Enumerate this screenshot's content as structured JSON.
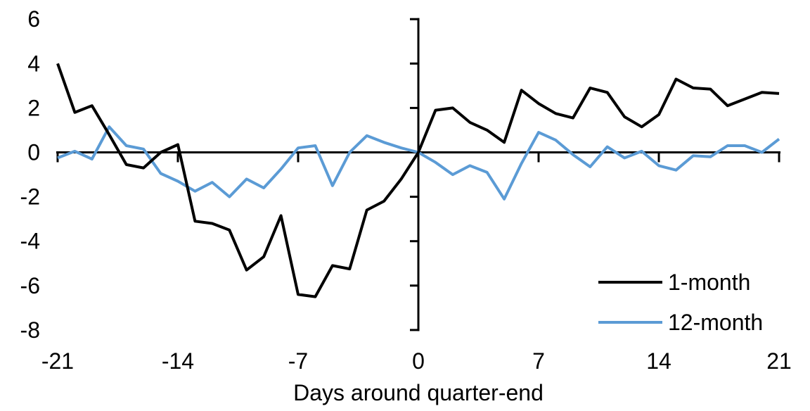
{
  "chart_data": {
    "type": "line",
    "title": "",
    "xlabel": "Days around quarter-end",
    "ylabel": "",
    "xlim": [
      -21,
      21
    ],
    "ylim": [
      -8,
      6
    ],
    "x_ticks": [
      -21,
      -14,
      -7,
      0,
      7,
      14,
      21
    ],
    "y_ticks": [
      6,
      4,
      2,
      0,
      -2,
      -4,
      -6,
      -8
    ],
    "grid": false,
    "legend_position": "inside lower right",
    "x": [
      -21,
      -20,
      -19,
      -18,
      -17,
      -16,
      -15,
      -14,
      -13,
      -12,
      -11,
      -10,
      -9,
      -8,
      -7,
      -6,
      -5,
      -4,
      -3,
      -2,
      -1,
      0,
      1,
      2,
      3,
      4,
      5,
      6,
      7,
      8,
      9,
      10,
      11,
      12,
      13,
      14,
      15,
      16,
      17,
      18,
      19,
      20,
      21
    ],
    "series": [
      {
        "name": "1-month",
        "color": "#000000",
        "values": [
          4.0,
          1.8,
          2.1,
          0.8,
          -0.55,
          -0.7,
          0.0,
          0.35,
          -3.1,
          -3.2,
          -3.5,
          -5.3,
          -4.7,
          -2.85,
          -6.4,
          -6.5,
          -5.1,
          -5.25,
          -2.6,
          -2.2,
          -1.2,
          0.0,
          1.9,
          2.0,
          1.35,
          1.0,
          0.45,
          2.8,
          2.2,
          1.75,
          1.55,
          2.9,
          2.7,
          1.6,
          1.15,
          1.7,
          3.3,
          2.9,
          2.85,
          2.1,
          2.4,
          2.7,
          2.65
        ]
      },
      {
        "name": "12-month",
        "color": "#5B9BD5",
        "values": [
          -0.25,
          0.05,
          -0.3,
          1.15,
          0.3,
          0.15,
          -0.95,
          -1.3,
          -1.75,
          -1.35,
          -2.0,
          -1.2,
          -1.6,
          -0.75,
          0.2,
          0.3,
          -1.5,
          0.0,
          0.75,
          0.45,
          0.2,
          0.0,
          -0.45,
          -1.0,
          -0.6,
          -0.9,
          -2.1,
          -0.5,
          0.9,
          0.55,
          -0.1,
          -0.65,
          0.25,
          -0.25,
          0.05,
          -0.6,
          -0.8,
          -0.15,
          -0.2,
          0.3,
          0.3,
          0.0,
          0.6
        ]
      }
    ]
  },
  "legend": {
    "items": [
      {
        "label": "1-month",
        "color": "#000000"
      },
      {
        "label": "12-month",
        "color": "#5B9BD5"
      }
    ]
  },
  "axes": {
    "x_title": "Days around quarter-end"
  }
}
